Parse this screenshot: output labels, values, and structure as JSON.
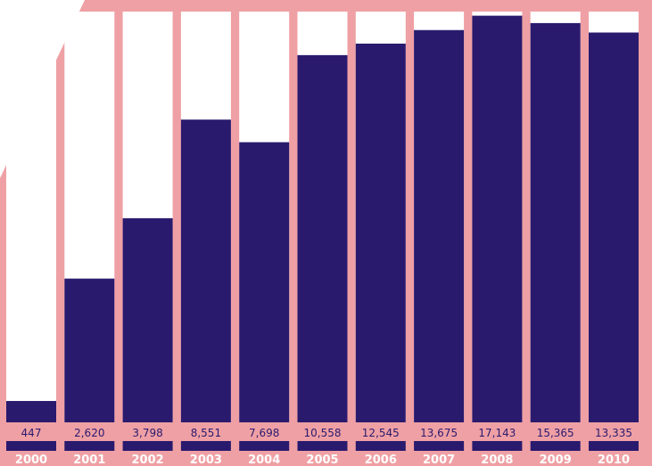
{
  "colors": {
    "background": "#efa0a4",
    "bar": "#2a1a6e",
    "track": "#ffffff",
    "value_text": "#2a1a6e",
    "year_text": "#ffffff"
  },
  "chart_data": {
    "type": "bar",
    "title": "",
    "xlabel": "",
    "ylabel": "",
    "categories": [
      "2000",
      "2001",
      "2002",
      "2003",
      "2004",
      "2005",
      "2006",
      "2007",
      "2008",
      "2009",
      "2010"
    ],
    "value_labels": [
      "447",
      "2,620",
      "3,798",
      "8,551",
      "7,698",
      "10,558",
      "12,545",
      "13,675",
      "17,143",
      "15,365",
      "13,335"
    ],
    "values": [
      447,
      2620,
      3798,
      8551,
      7698,
      10558,
      12545,
      13675,
      17143,
      15365,
      13335
    ],
    "bar_fill_fraction": [
      0.052,
      0.35,
      0.497,
      0.737,
      0.682,
      0.894,
      0.922,
      0.955,
      0.99,
      0.972,
      0.949
    ],
    "grid": false,
    "legend": "none"
  }
}
